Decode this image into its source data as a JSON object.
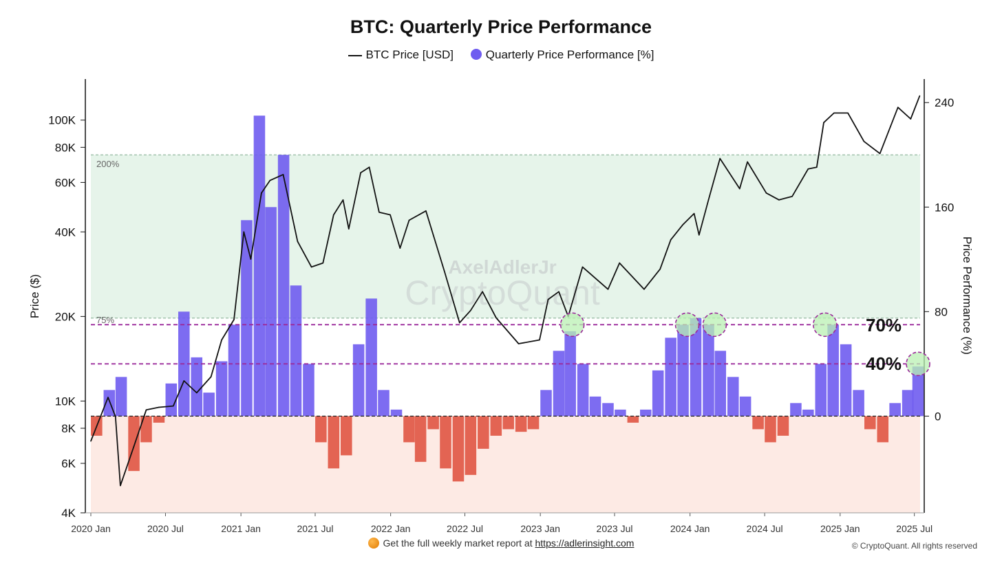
{
  "title": "BTC: Quarterly Price Performance",
  "legend": {
    "price_label": "BTC Price [USD]",
    "perf_label": "Quarterly Price Performance [%]"
  },
  "footer": {
    "text": "Get the full weekly market report at",
    "link": "https://adlerinsight.com"
  },
  "copyright": "© CryptoQuant. All rights reserved",
  "watermark": {
    "author": "AxelAdlerJr",
    "brand": "CryptoQuant"
  },
  "colors": {
    "positive": "#6f5cf0",
    "negative": "#e05542",
    "price_line": "#111111",
    "bull_zone": "#e6f4ea",
    "bear_zone": "#fdeae4",
    "threshold": "#9b2a9b",
    "highlight": "#b9f0b3"
  },
  "chart_data": {
    "type": "bar",
    "x_tick_labels": [
      "2020 Jan",
      "2020 Jul",
      "2021 Jan",
      "2021 Jul",
      "2022 Jan",
      "2022 Jul",
      "2023 Jan",
      "2023 Jul",
      "2024 Jan",
      "2024 Jul",
      "2025 Jan",
      "2025 Jul"
    ],
    "xlim": [
      "2020-01-01",
      "2025-07-15"
    ],
    "left_axis": {
      "label": "Price ($)",
      "scale": "log",
      "ticks": [
        "4K",
        "6K",
        "8K",
        "10K",
        "20K",
        "40K",
        "60K",
        "80K",
        "100K"
      ],
      "ylim": [
        4000,
        140000
      ]
    },
    "right_axis": {
      "label": "Price Performance (%)",
      "ticks": [
        "0",
        "80",
        "160",
        "240"
      ],
      "ylim": [
        -74,
        258
      ]
    },
    "zone_labels": {
      "upper": "200%",
      "lower": "75%"
    },
    "threshold_labels": [
      "70%",
      "40%"
    ],
    "grid": false,
    "legend_position": "top",
    "series": [
      {
        "name": "BTC Price [USD]",
        "type": "line",
        "axis": "left",
        "x": [
          "2020-01-01",
          "2020-02-12",
          "2020-03-01",
          "2020-03-13",
          "2020-04-15",
          "2020-05-15",
          "2020-06-15",
          "2020-07-20",
          "2020-08-15",
          "2020-09-15",
          "2020-10-20",
          "2020-11-15",
          "2020-12-15",
          "2021-01-08",
          "2021-01-25",
          "2021-02-20",
          "2021-03-13",
          "2021-04-14",
          "2021-05-19",
          "2021-06-22",
          "2021-07-20",
          "2021-08-15",
          "2021-09-07",
          "2021-09-21",
          "2021-10-20",
          "2021-11-10",
          "2021-12-04",
          "2021-12-31",
          "2022-01-24",
          "2022-02-15",
          "2022-03-28",
          "2022-05-12",
          "2022-06-18",
          "2022-07-15",
          "2022-08-13",
          "2022-09-15",
          "2022-11-09",
          "2022-12-30",
          "2023-01-20",
          "2023-02-15",
          "2023-03-10",
          "2023-04-14",
          "2023-06-15",
          "2023-07-13",
          "2023-09-11",
          "2023-10-20",
          "2023-11-15",
          "2023-12-15",
          "2024-01-11",
          "2024-01-23",
          "2024-02-15",
          "2024-03-14",
          "2024-05-01",
          "2024-05-20",
          "2024-07-05",
          "2024-08-05",
          "2024-09-06",
          "2024-10-15",
          "2024-11-05",
          "2024-11-22",
          "2024-12-17",
          "2025-01-20",
          "2025-02-28",
          "2025-04-08",
          "2025-05-22",
          "2025-06-22",
          "2025-07-14"
        ],
        "values": [
          7200,
          10300,
          8800,
          5000,
          6900,
          9300,
          9500,
          9600,
          11800,
          10700,
          12200,
          16500,
          19500,
          40000,
          32000,
          55000,
          61000,
          64000,
          37000,
          30000,
          31000,
          46000,
          52000,
          41000,
          65000,
          68000,
          47000,
          46000,
          35000,
          44000,
          47500,
          29000,
          19000,
          21000,
          24500,
          19800,
          16000,
          16500,
          23000,
          24500,
          20000,
          30000,
          25000,
          31000,
          25000,
          29500,
          37500,
          42500,
          46500,
          39000,
          52000,
          73000,
          57000,
          71000,
          55000,
          52000,
          53500,
          67000,
          68000,
          98000,
          106000,
          106000,
          84000,
          76000,
          111000,
          101000,
          122000
        ]
      },
      {
        "name": "Quarterly Price Performance [%]",
        "type": "bar",
        "axis": "right",
        "x": [
          "2020-01-15",
          "2020-02-15",
          "2020-03-15",
          "2020-04-15",
          "2020-05-15",
          "2020-06-15",
          "2020-07-15",
          "2020-08-15",
          "2020-09-15",
          "2020-10-15",
          "2020-11-15",
          "2020-12-15",
          "2021-01-15",
          "2021-02-15",
          "2021-03-15",
          "2021-04-15",
          "2021-05-15",
          "2021-06-15",
          "2021-07-15",
          "2021-08-15",
          "2021-09-15",
          "2021-10-15",
          "2021-11-15",
          "2021-12-15",
          "2022-01-15",
          "2022-02-15",
          "2022-03-15",
          "2022-04-15",
          "2022-05-15",
          "2022-06-15",
          "2022-07-15",
          "2022-08-15",
          "2022-09-15",
          "2022-10-15",
          "2022-11-15",
          "2022-12-15",
          "2023-01-15",
          "2023-02-15",
          "2023-03-15",
          "2023-04-15",
          "2023-05-15",
          "2023-06-15",
          "2023-07-15",
          "2023-08-15",
          "2023-09-15",
          "2023-10-15",
          "2023-11-15",
          "2023-12-15",
          "2024-01-15",
          "2024-02-15",
          "2024-03-15",
          "2024-04-15",
          "2024-05-15",
          "2024-06-15",
          "2024-07-15",
          "2024-08-15",
          "2024-09-15",
          "2024-10-15",
          "2024-11-15",
          "2024-12-15",
          "2025-01-15",
          "2025-02-15",
          "2025-03-15",
          "2025-04-15",
          "2025-05-15",
          "2025-06-15",
          "2025-07-10"
        ],
        "values": [
          -15,
          20,
          30,
          -42,
          -20,
          -5,
          25,
          80,
          45,
          18,
          42,
          70,
          150,
          230,
          160,
          200,
          100,
          40,
          -20,
          -40,
          -30,
          55,
          90,
          20,
          5,
          -20,
          -35,
          -10,
          -40,
          -50,
          -45,
          -25,
          -15,
          -10,
          -12,
          -10,
          20,
          50,
          65,
          40,
          15,
          10,
          5,
          -5,
          5,
          35,
          60,
          70,
          75,
          70,
          50,
          30,
          15,
          -10,
          -20,
          -15,
          10,
          5,
          40,
          70,
          55,
          20,
          -10,
          -20,
          10,
          20,
          38
        ]
      }
    ]
  }
}
